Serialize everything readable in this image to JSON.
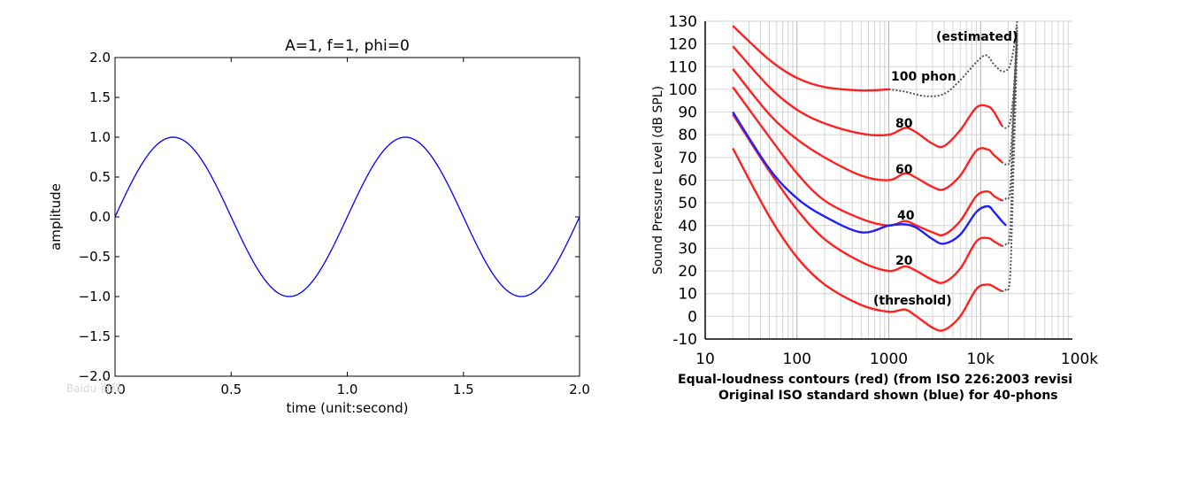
{
  "chart_data": [
    {
      "type": "line",
      "title": "A=1, f=1, phi=0",
      "xlabel": "time (unit:second)",
      "ylabel": "amplitude",
      "xlim": [
        0.0,
        2.0
      ],
      "ylim": [
        -2.0,
        2.0
      ],
      "xticks": [
        "0.0",
        "0.5",
        "1.0",
        "1.5",
        "2.0"
      ],
      "yticks": [
        "2.0",
        "1.5",
        "1.0",
        "0.5",
        "0.0",
        "−0.5",
        "−1.0",
        "−1.5",
        "−2.0"
      ],
      "grid": false,
      "series": [
        {
          "color": "#0000ff",
          "x": [
            0.0,
            0.1,
            0.2,
            0.25,
            0.3,
            0.4,
            0.5,
            0.6,
            0.7,
            0.75,
            0.8,
            0.9,
            1.0,
            1.1,
            1.2,
            1.25,
            1.3,
            1.4,
            1.5,
            1.6,
            1.7,
            1.75,
            1.8,
            1.9,
            2.0
          ],
          "values": [
            0.0,
            0.59,
            0.95,
            1.0,
            0.95,
            0.59,
            0.0,
            -0.59,
            -0.95,
            -1.0,
            -0.95,
            -0.59,
            0.0,
            0.59,
            0.95,
            1.0,
            0.95,
            0.59,
            0.0,
            -0.59,
            -0.95,
            -1.0,
            -0.95,
            -0.59,
            0.0
          ]
        }
      ],
      "watermark": "Baidu 百科"
    },
    {
      "type": "line",
      "ylabel": "Sound Pressure Level (dB SPL)",
      "caption_line1": "Equal-loudness contours (red) (from ISO 226:2003 revisi",
      "caption_line2": "Original ISO standard shown (blue) for 40-phons",
      "xscale": "log",
      "xlim": [
        10,
        25000
      ],
      "ylim": [
        -10,
        130
      ],
      "xticks": [
        "10",
        "100",
        "1000",
        "10k",
        "100k"
      ],
      "yticks": [
        "130",
        "120",
        "110",
        "100",
        "90",
        "80",
        "70",
        "60",
        "50",
        "40",
        "30",
        "20",
        "10",
        "0",
        "-10"
      ],
      "grid": true,
      "series": [
        {
          "name": "100 phon",
          "color": "#ff2020",
          "x": [
            20,
            50,
            100,
            200,
            500,
            1000
          ],
          "values": [
            128,
            113,
            105,
            101,
            99.5,
            100
          ]
        },
        {
          "color": "#555555",
          "style": "dotted",
          "x": [
            1000,
            1500,
            2500,
            4000,
            6000,
            9000,
            11500,
            14000,
            17000,
            20000,
            22000,
            23500,
            25000
          ],
          "values": [
            100,
            99,
            97,
            98,
            104,
            112,
            115,
            111,
            108,
            109,
            114,
            121,
            130
          ]
        },
        {
          "name": "80",
          "color": "#ff2020",
          "x": [
            20,
            50,
            100,
            200,
            500,
            1000,
            1500,
            2000,
            3000,
            4000,
            6000,
            9000,
            12000,
            14000,
            17000
          ],
          "values": [
            119,
            101,
            91,
            85,
            80.5,
            80,
            83,
            81,
            76,
            75,
            82,
            92,
            92.5,
            90,
            84
          ]
        },
        {
          "color": "#555555",
          "style": "dotted",
          "x": [
            17000,
            19000,
            21000,
            23000,
            25000
          ],
          "values": [
            84,
            83,
            86,
            100,
            128
          ]
        },
        {
          "name": "60",
          "color": "#ff2020",
          "x": [
            20,
            50,
            100,
            200,
            500,
            1000,
            1500,
            2000,
            3000,
            4000,
            6000,
            9000,
            12000,
            14000,
            17000
          ],
          "values": [
            109,
            89,
            78,
            70,
            62,
            60,
            63,
            61,
            57,
            56,
            62,
            73,
            73.5,
            71,
            68
          ]
        },
        {
          "color": "#555555",
          "style": "dotted",
          "x": [
            17000,
            19000,
            21000,
            23000,
            25000
          ],
          "values": [
            68,
            67,
            70,
            95,
            126
          ]
        },
        {
          "name": "40",
          "color": "#ff2020",
          "x": [
            20,
            50,
            100,
            200,
            500,
            1000,
            1500,
            2000,
            3000,
            4000,
            6000,
            9000,
            12000,
            14000,
            17000
          ],
          "values": [
            101,
            79,
            63,
            51,
            43,
            40,
            42,
            40,
            37,
            36,
            42,
            53,
            55,
            53,
            51
          ]
        },
        {
          "color": "#555555",
          "style": "dotted",
          "x": [
            17000,
            19000,
            21000,
            23000,
            25000
          ],
          "values": [
            51,
            52,
            56,
            90,
            124
          ]
        },
        {
          "name": "20",
          "color": "#ff2020",
          "x": [
            20,
            50,
            100,
            200,
            500,
            1000,
            1500,
            2000,
            3000,
            4000,
            6000,
            9000,
            12000,
            14000,
            17000
          ],
          "values": [
            89,
            64,
            47,
            34,
            24,
            20,
            22,
            20,
            16,
            15,
            21,
            33,
            34.5,
            33,
            31
          ]
        },
        {
          "color": "#555555",
          "style": "dotted",
          "x": [
            17000,
            19000,
            21000,
            23000,
            25000
          ],
          "values": [
            31,
            32,
            38,
            85,
            122
          ]
        },
        {
          "name": "(threshold)",
          "color": "#ff2020",
          "x": [
            20,
            50,
            100,
            200,
            500,
            1000,
            1500,
            2000,
            3000,
            4000,
            6000,
            9000,
            12000,
            14000,
            17000
          ],
          "values": [
            74,
            44,
            26,
            14,
            5,
            2,
            3,
            0,
            -5,
            -6,
            0,
            12,
            14,
            13,
            11
          ]
        },
        {
          "color": "#555555",
          "style": "dotted",
          "x": [
            17000,
            19000,
            21000,
            23000,
            25000
          ],
          "values": [
            11,
            12,
            18,
            70,
            120
          ]
        },
        {
          "name": "Original ISO (40-phons)",
          "color": "#2020ff",
          "x": [
            20,
            50,
            100,
            200,
            500,
            1000,
            1500,
            2000,
            3000,
            4000,
            6000,
            9000,
            12000,
            14000,
            17000,
            19000
          ],
          "values": [
            90,
            65,
            52,
            44,
            37,
            40,
            40.5,
            39,
            34,
            32,
            36,
            46,
            48.5,
            46,
            42,
            40
          ]
        }
      ],
      "annotations": [
        "(estimated)",
        "100 phon",
        "80",
        "60",
        "40",
        "20",
        "(threshold)"
      ]
    }
  ]
}
